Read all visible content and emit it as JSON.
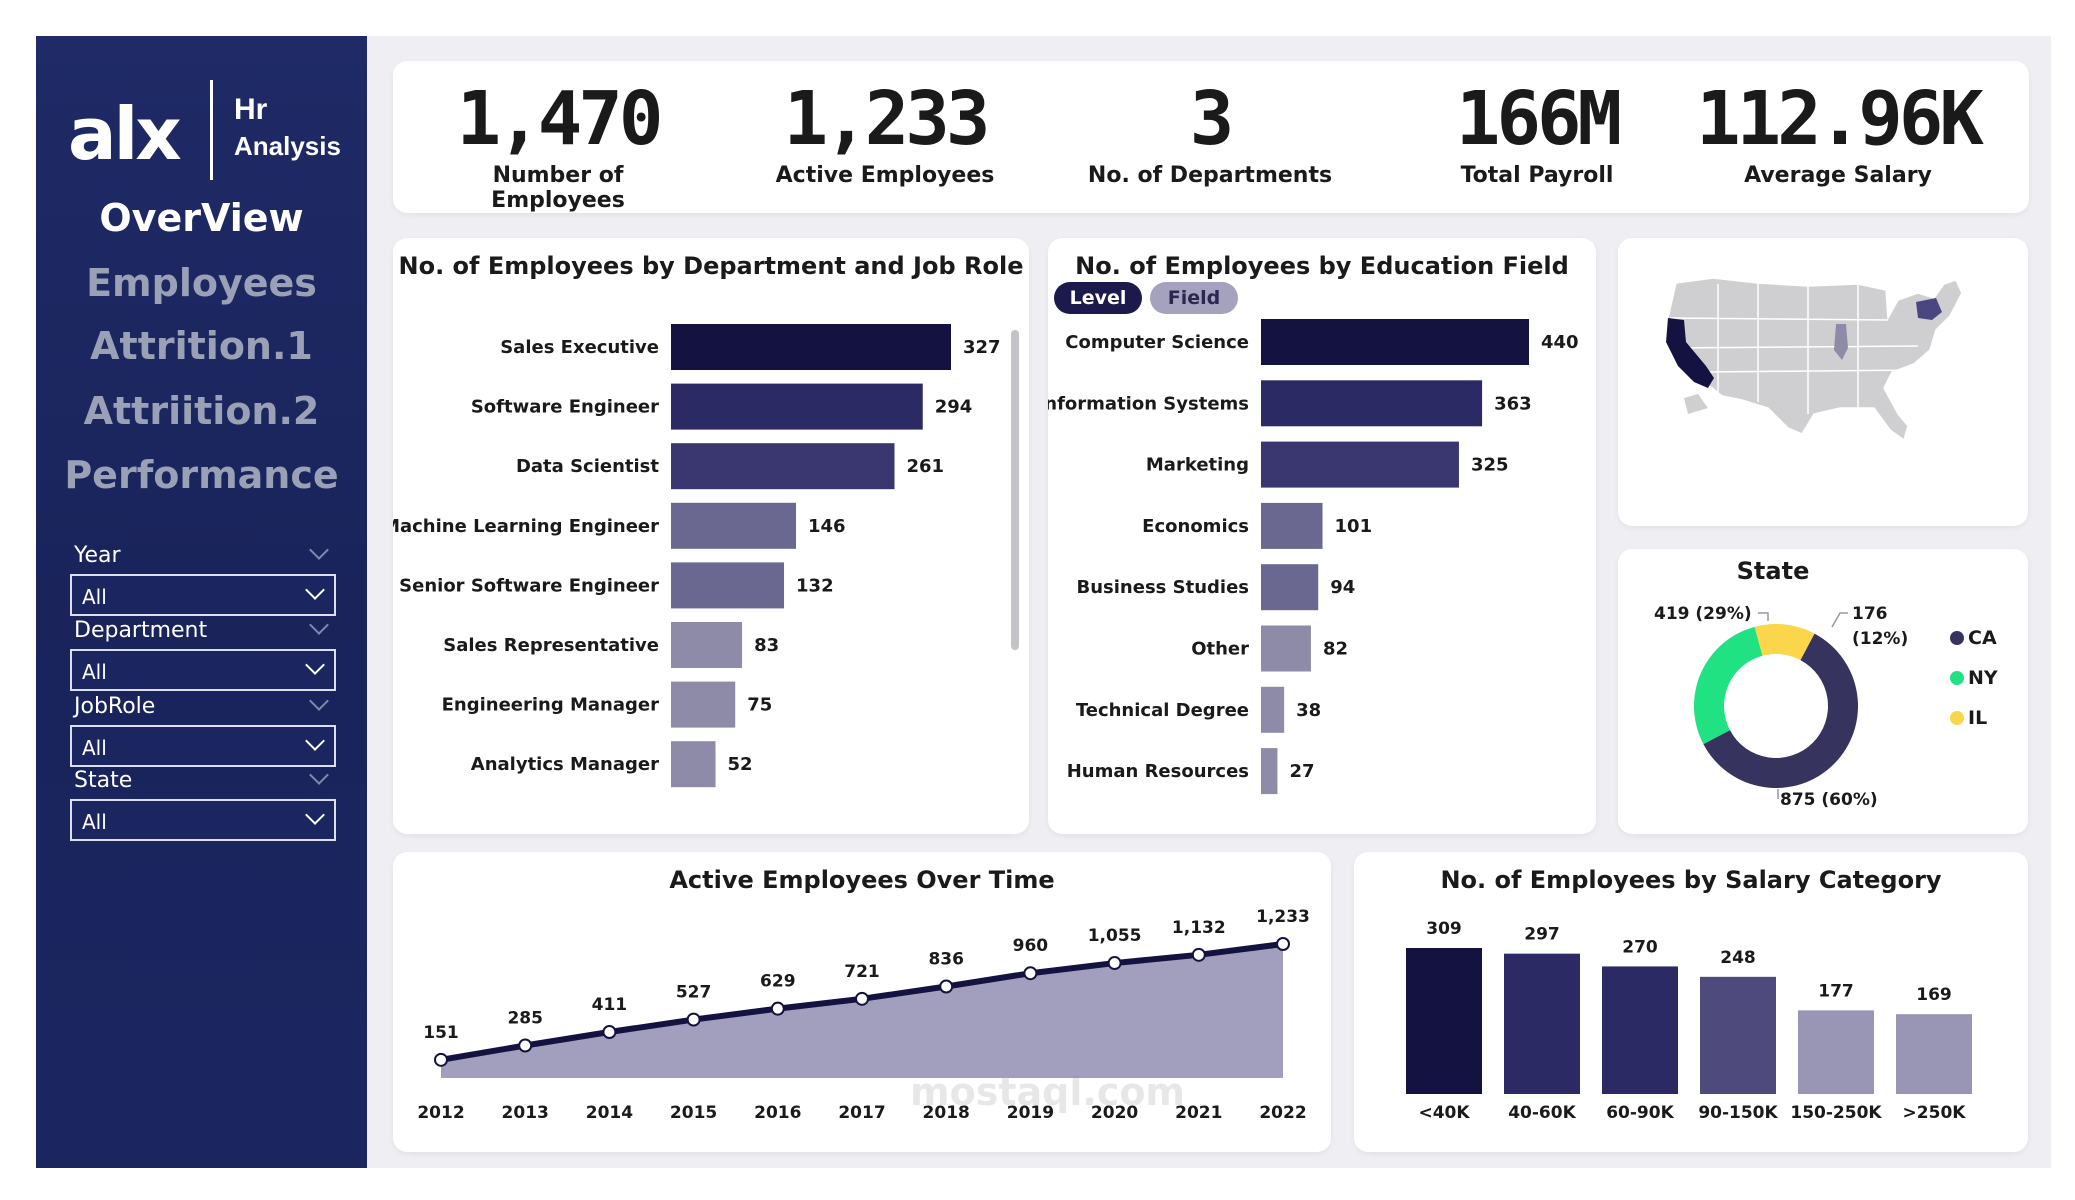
{
  "brand": {
    "logo": "alx",
    "title": "Hr",
    "subtitle": "Analysis"
  },
  "nav": [
    "OverView",
    "Employees",
    "Attrition.1",
    "Attriition.2",
    "Performance"
  ],
  "filters": [
    {
      "label": "Year",
      "value": "All"
    },
    {
      "label": "Department",
      "value": "All"
    },
    {
      "label": "JobRole",
      "value": "All"
    },
    {
      "label": "State",
      "value": "All"
    }
  ],
  "kpis": [
    {
      "value": "1,470",
      "label": "Number of Employees"
    },
    {
      "value": "1,233",
      "label": "Active Employees"
    },
    {
      "value": "3",
      "label": "No. of Departments"
    },
    {
      "value": "166M",
      "label": "Total Payroll"
    },
    {
      "value": "112.96K",
      "label": "Average Salary"
    }
  ],
  "education_toggle": {
    "level": "Level",
    "field": "Field"
  },
  "colors": {
    "dark": "#141241",
    "mid": "#2c2a64",
    "purple": "#3a3670",
    "light": "#6a6890",
    "lighter": "#8d8ba8",
    "ca": "#36335e",
    "ny": "#21e283",
    "il": "#fbd54a"
  },
  "watermark": "mostaql.com",
  "chart_data": [
    {
      "type": "bar",
      "orientation": "horizontal",
      "title": "No. of Employees by Department and Job Role",
      "categories": [
        "Sales Executive",
        "Software Engineer",
        "Data Scientist",
        "Machine Learning Engineer",
        "Senior Software Engineer",
        "Sales Representative",
        "Engineering Manager",
        "Analytics Manager"
      ],
      "values": [
        327,
        294,
        261,
        146,
        132,
        83,
        75,
        52
      ]
    },
    {
      "type": "bar",
      "orientation": "horizontal",
      "title": "No. of Employees by Education Field",
      "categories": [
        "Computer Science",
        "Information Systems",
        "Marketing",
        "Economics",
        "Business Studies",
        "Other",
        "Technical Degree",
        "Human Resources"
      ],
      "values": [
        440,
        363,
        325,
        101,
        94,
        82,
        38,
        27
      ]
    },
    {
      "type": "pie",
      "title": "State",
      "categories": [
        "CA",
        "NY",
        "IL"
      ],
      "values": [
        875,
        419,
        176
      ],
      "labels": [
        "875 (60%)",
        "419 (29%)",
        "176 (12%)"
      ]
    },
    {
      "type": "area",
      "title": "Active Employees Over Time",
      "x": [
        "2012",
        "2013",
        "2014",
        "2015",
        "2016",
        "2017",
        "2018",
        "2019",
        "2020",
        "2021",
        "2022"
      ],
      "values": [
        151,
        285,
        411,
        527,
        629,
        721,
        836,
        960,
        1055,
        1132,
        1233
      ],
      "labels": [
        "151",
        "285",
        "411",
        "527",
        "629",
        "721",
        "836",
        "960",
        "1,055",
        "1,132",
        "1,233"
      ]
    },
    {
      "type": "bar",
      "title": "No. of Employees by Salary Category",
      "categories": [
        "<40K",
        "40-60K",
        "60-90K",
        "90-150K",
        "150-250K",
        ">250K"
      ],
      "values": [
        309,
        297,
        270,
        248,
        177,
        169
      ]
    }
  ]
}
